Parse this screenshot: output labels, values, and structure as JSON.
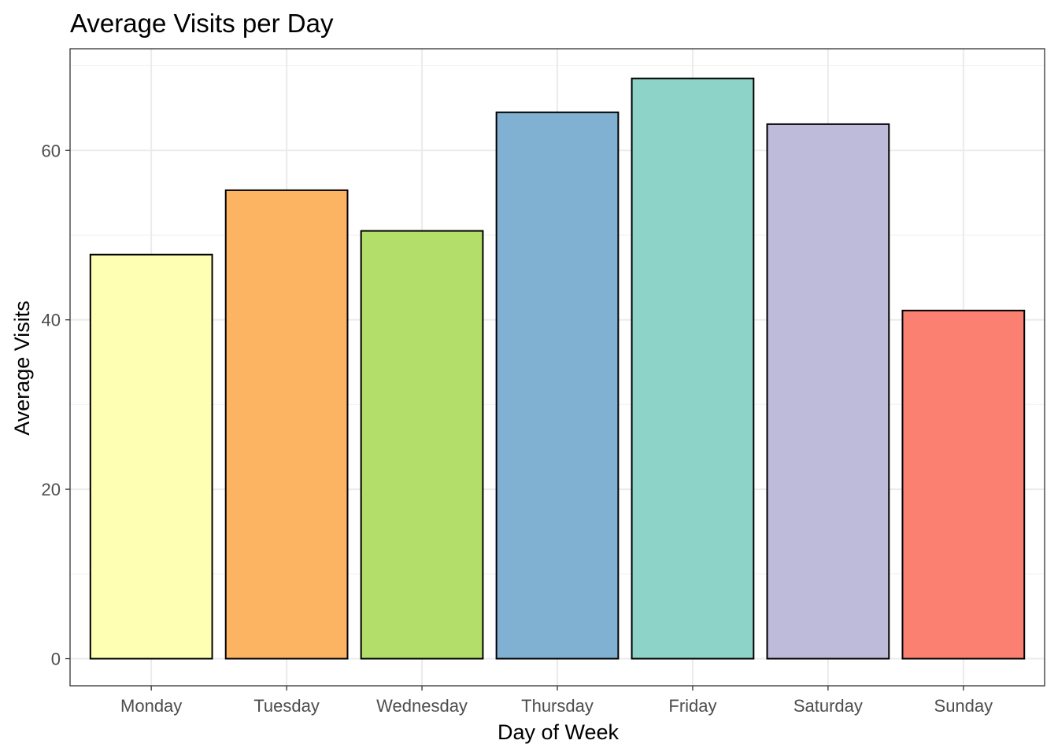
{
  "chart_data": {
    "type": "bar",
    "title": "Average Visits per Day",
    "xlabel": "Day of Week",
    "ylabel": "Average Visits",
    "categories": [
      "Monday",
      "Tuesday",
      "Wednesday",
      "Thursday",
      "Friday",
      "Saturday",
      "Sunday"
    ],
    "values": [
      47.7,
      55.3,
      50.5,
      64.5,
      68.5,
      63.1,
      41.1
    ],
    "colors": [
      "#FFFFB3",
      "#FDB462",
      "#B3DE69",
      "#80B1D3",
      "#8DD3C7",
      "#BEBADA",
      "#FB8072"
    ],
    "ylim": [
      -3.2,
      72
    ],
    "yticks": [
      0,
      20,
      40,
      60
    ],
    "ytick_labels": [
      "0",
      "20",
      "40",
      "60"
    ],
    "grid": true,
    "legend": "none"
  }
}
